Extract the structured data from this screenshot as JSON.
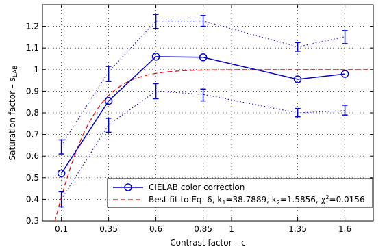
{
  "chart_data": {
    "type": "line",
    "xlabel": "Contrast factor – c",
    "ylabel_main": "Saturation factor – s",
    "ylabel_sub": "LAB",
    "xlim": [
      0.0,
      1.75
    ],
    "ylim": [
      0.3,
      1.3
    ],
    "xticks": [
      0.1,
      0.35,
      0.6,
      0.85,
      1,
      1.35,
      1.6
    ],
    "xtick_labels": [
      "0.1",
      "0.35",
      "0.6",
      "0.85",
      "1",
      "1.35",
      "1.6"
    ],
    "yticks": [
      0.3,
      0.4,
      0.5,
      0.6,
      0.7,
      0.8,
      0.9,
      1.0,
      1.1,
      1.2
    ],
    "ytick_labels": [
      "0.3",
      "0.4",
      "0.5",
      "0.6",
      "0.7",
      "0.8",
      "0.9",
      "1",
      "1.1",
      "1.2"
    ],
    "grid": true,
    "legend_position": "bottom-right",
    "series": [
      {
        "name": "CIELAB color correction",
        "style": "solid-circle",
        "color": "#0000cc",
        "x": [
          0.1,
          0.35,
          0.6,
          0.85,
          1.35,
          1.6
        ],
        "y": [
          0.52,
          0.855,
          1.06,
          1.057,
          0.955,
          0.98
        ]
      },
      {
        "name": "Best fit to Eq. 6",
        "style": "dashed",
        "color": "#e00000",
        "k1": 38.7889,
        "k2": 1.5856,
        "chi2": 0.0156
      },
      {
        "name": "upper bound",
        "style": "dotted",
        "color": "#0000cc",
        "x": [
          0.1,
          0.35,
          0.6,
          0.85,
          1.35,
          1.6
        ],
        "y": [
          0.65,
          0.99,
          1.225,
          1.225,
          1.105,
          1.152
        ]
      },
      {
        "name": "lower bound",
        "style": "dotted",
        "color": "#0000cc",
        "x": [
          0.1,
          0.35,
          0.6,
          0.85,
          1.35,
          1.6
        ],
        "y": [
          0.4,
          0.745,
          0.9,
          0.885,
          0.8,
          0.81
        ]
      }
    ],
    "error_bars": [
      {
        "x": 0.1,
        "y": 0.65,
        "low": 0.61,
        "high": 0.675
      },
      {
        "x": 0.1,
        "y": 0.4,
        "low": 0.365,
        "high": 0.435
      },
      {
        "x": 0.35,
        "y": 0.99,
        "low": 0.945,
        "high": 1.015
      },
      {
        "x": 0.35,
        "y": 0.745,
        "low": 0.71,
        "high": 0.775
      },
      {
        "x": 0.6,
        "y": 1.225,
        "low": 1.19,
        "high": 1.255
      },
      {
        "x": 0.6,
        "y": 0.9,
        "low": 0.865,
        "high": 0.935
      },
      {
        "x": 0.85,
        "y": 1.225,
        "low": 1.2,
        "high": 1.25
      },
      {
        "x": 0.85,
        "y": 0.885,
        "low": 0.855,
        "high": 0.91
      },
      {
        "x": 1.35,
        "y": 1.105,
        "low": 1.085,
        "high": 1.125
      },
      {
        "x": 1.35,
        "y": 0.8,
        "low": 0.782,
        "high": 0.82
      },
      {
        "x": 1.6,
        "y": 1.152,
        "low": 1.12,
        "high": 1.18
      },
      {
        "x": 1.6,
        "y": 0.81,
        "low": 0.79,
        "high": 0.835
      }
    ],
    "legend": {
      "entry1": "CIELAB color correction",
      "entry2_prefix": "Best fit to Eq. 6, k",
      "entry2_k1_sub": "1",
      "entry2_k1_val": "=38.7889, k",
      "entry2_k2_sub": "2",
      "entry2_k2_val": "=1.5856, χ",
      "entry2_chi_sup": "2",
      "entry2_chi_val": "=0.0156"
    }
  }
}
